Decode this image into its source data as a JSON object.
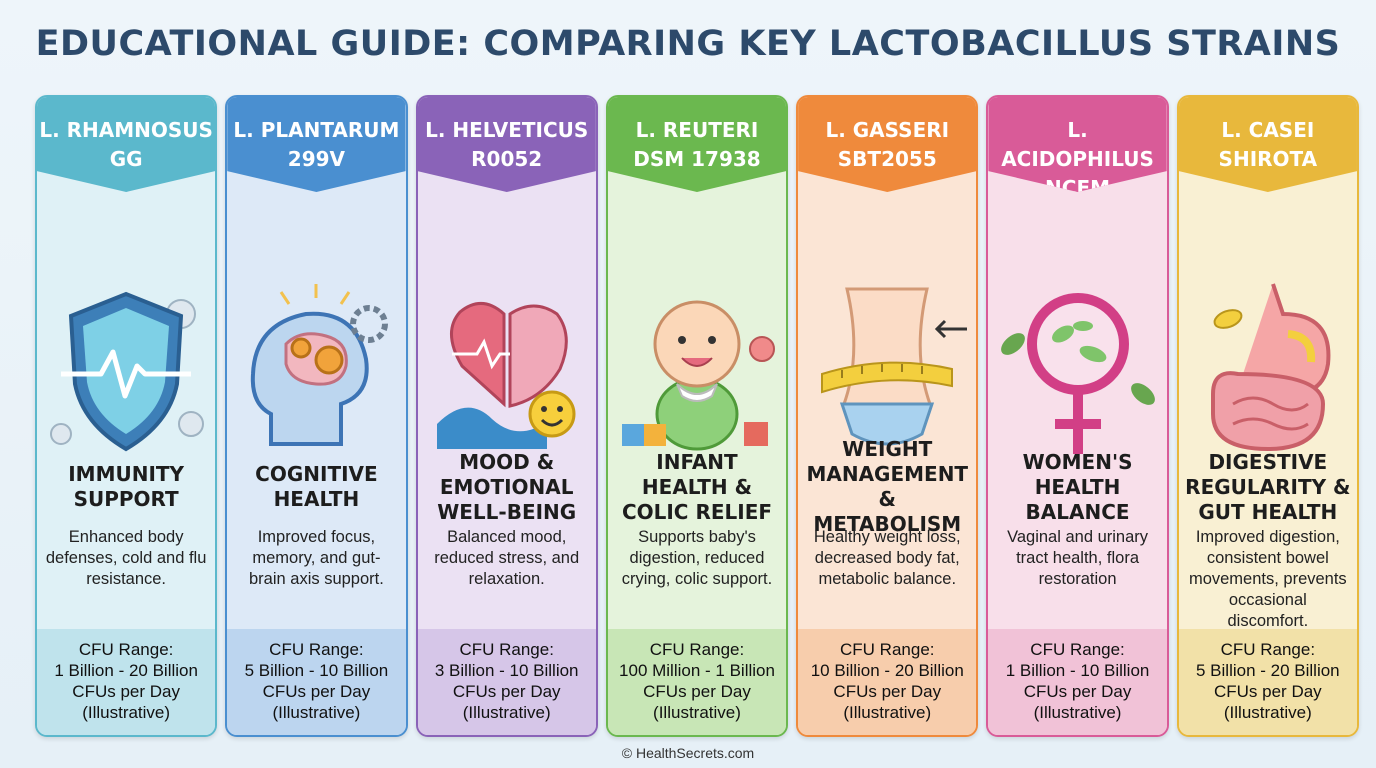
{
  "title": "EDUCATIONAL GUIDE: COMPARING KEY LACTOBACILLUS STRAINS",
  "footer": "© HealthSecrets.com",
  "cfu_label": "CFU Range:",
  "cfu_unit": "CFUs per Day",
  "cfu_note": "(Illustrative)",
  "cards": [
    {
      "name_line1": "L. RHAMNOSUS",
      "name_line2": "GG",
      "benefit": "IMMUNITY SUPPORT",
      "description": "Enhanced body defenses, cold and flu resistance.",
      "cfu_range": "1 Billion - 20 Billion",
      "icon": "shield-icon",
      "accent": "#5bb8cc",
      "background": "#dff1f6",
      "footer_color": "#bfe3ec"
    },
    {
      "name_line1": "L. PLANTARUM",
      "name_line2": "299v",
      "benefit": "COGNITIVE HEALTH",
      "description": "Improved focus, memory, and gut-brain axis support.",
      "cfu_range": "5 Billion - 10 Billion",
      "icon": "brain-gears-icon",
      "accent": "#4a8fd0",
      "background": "#dde9f7",
      "footer_color": "#bcd5ef"
    },
    {
      "name_line1": "L. HELVETICUS",
      "name_line2": "R0052",
      "benefit": "MOOD & EMOTIONAL WELL-BEING",
      "description": "Balanced mood, reduced stress, and relaxation.",
      "cfu_range": "3 Billion - 10 Billion",
      "icon": "heart-brain-icon",
      "accent": "#8a63b8",
      "background": "#ebe1f3",
      "footer_color": "#d6c6e8"
    },
    {
      "name_line1": "L. REUTERI",
      "name_line2": "DSM 17938",
      "benefit": "INFANT HEALTH & COLIC RELIEF",
      "description": "Supports baby's digestion, reduced crying, colic support.",
      "cfu_range": "100 Million - 1 Billion",
      "icon": "baby-icon",
      "accent": "#6bb84f",
      "background": "#e5f3dc",
      "footer_color": "#c8e6b6"
    },
    {
      "name_line1": "L. GASSERI",
      "name_line2": "SBT2055",
      "benefit": "WEIGHT MANAGEMENT & METABOLISM",
      "description": "Healthy weight loss, decreased body fat, metabolic balance.",
      "cfu_range": "10 Billion - 20 Billion",
      "icon": "waist-tape-icon",
      "accent": "#ef8a3c",
      "background": "#fbe5d5",
      "footer_color": "#f7cdac"
    },
    {
      "name_line1": "L. ACIDOPHILUS",
      "name_line2": "NCFM",
      "benefit": "WOMEN'S HEALTH BALANCE",
      "description": "Vaginal and urinary tract health, flora restoration",
      "cfu_range": "1 Billion - 10 Billion",
      "icon": "female-symbol-icon",
      "accent": "#d95b98",
      "background": "#f8dfea",
      "footer_color": "#f1c2d7"
    },
    {
      "name_line1": "L. CASEI",
      "name_line2": "SHIROTA",
      "benefit": "DIGESTIVE REGULARITY & GUT HEALTH",
      "description": "Improved digestion, consistent bowel movements, prevents occasional discomfort.",
      "cfu_range": "5 Billion - 20 Billion",
      "icon": "stomach-icon",
      "accent": "#e8b83c",
      "background": "#f9f0d3",
      "footer_color": "#f2e1a8"
    }
  ]
}
